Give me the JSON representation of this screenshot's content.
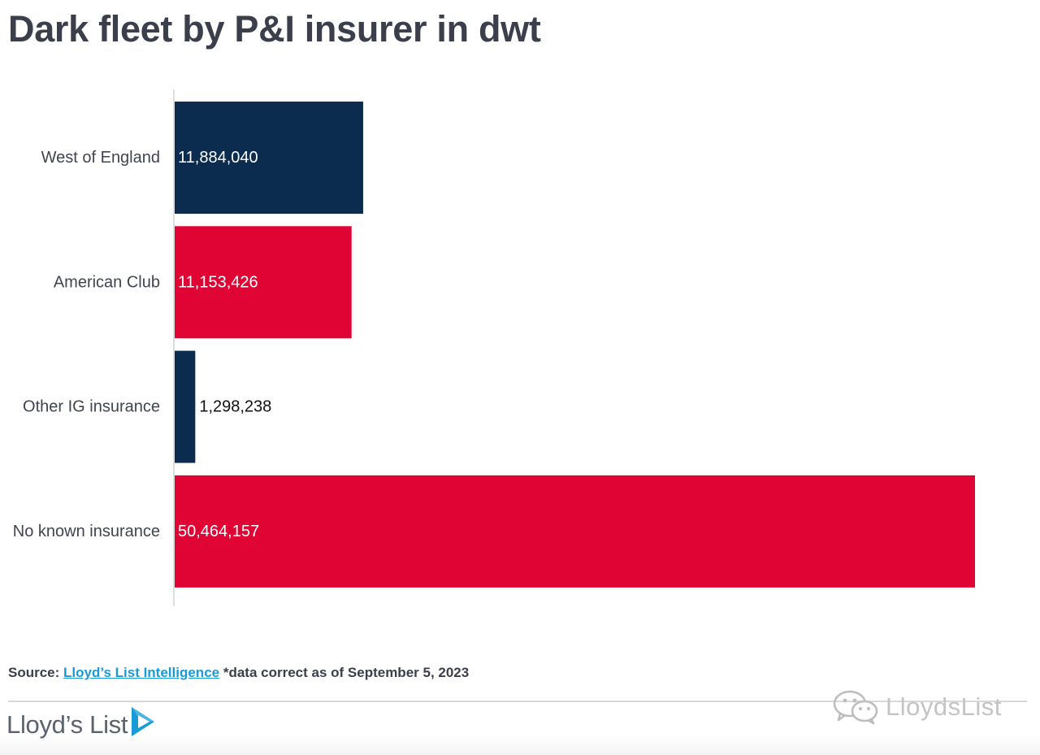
{
  "title": "Dark fleet by P&I insurer in dwt",
  "chart_data": {
    "type": "bar",
    "orientation": "horizontal",
    "categories": [
      "West of England",
      "American Club",
      "Other IG insurance",
      "No known insurance"
    ],
    "values": [
      11884040,
      11153426,
      1298238,
      50464157
    ],
    "data_labels": [
      "11,884,040",
      "11,153,426",
      "1,298,238",
      "50,464,157"
    ],
    "colors": [
      "#0b2c4f",
      "#e00434",
      "#0b2c4f",
      "#e00434"
    ],
    "xlim": [
      0,
      52000000
    ],
    "grid": false,
    "legend": "none"
  },
  "source": {
    "prefix": "Source:",
    "link_text": "Lloyd’s List Intelligence",
    "suffix": "*data correct as of September 5, 2023"
  },
  "brand": {
    "name": "Lloyd’s List",
    "logo_icon": "play-arrow-icon"
  },
  "watermark": {
    "icon": "wechat-icon",
    "text": "LloydsList"
  }
}
